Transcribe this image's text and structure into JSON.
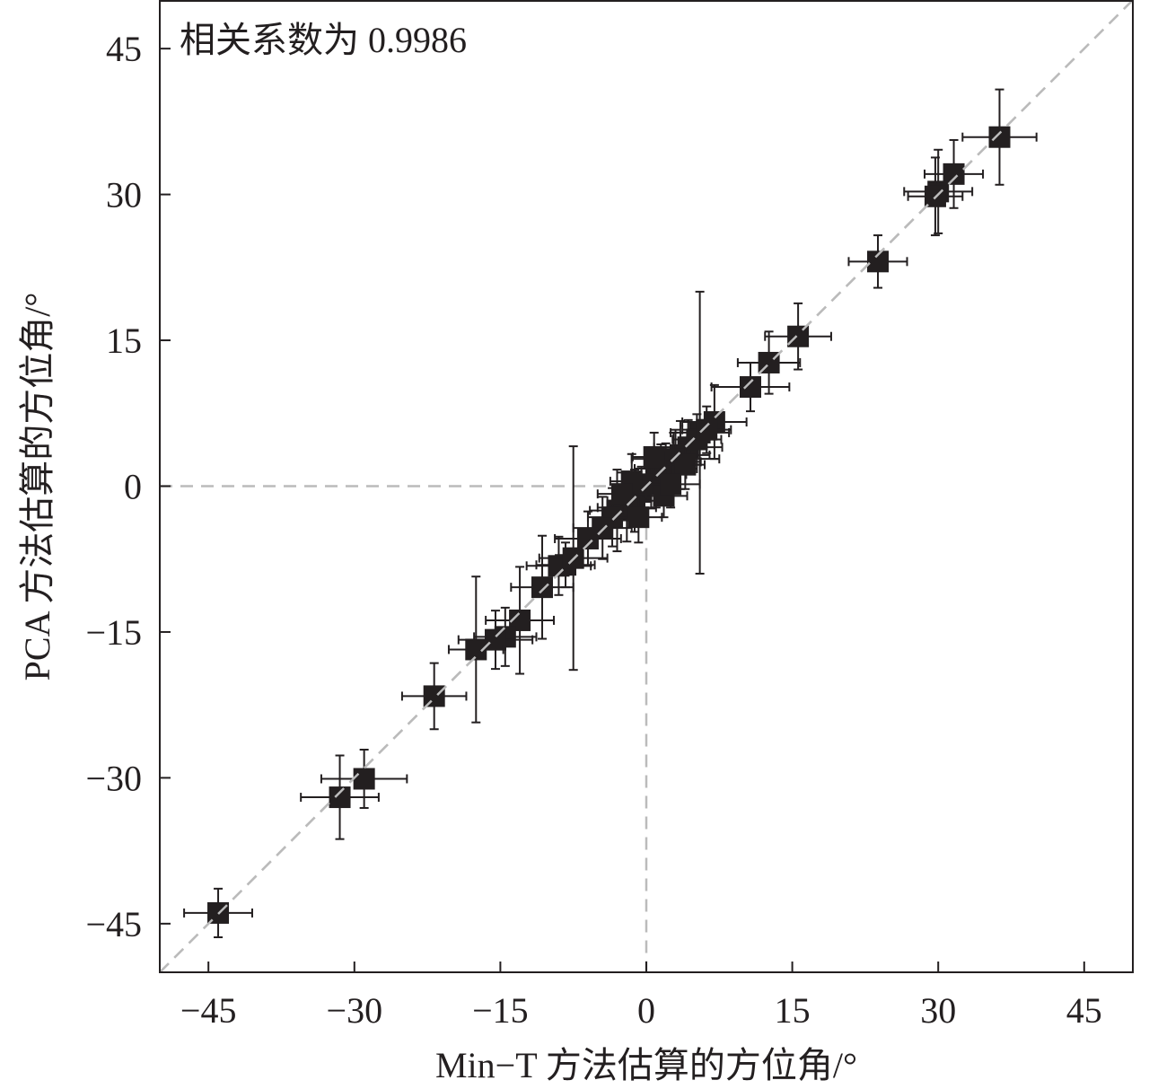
{
  "chart_data": {
    "type": "scatter",
    "annotation": "相关系数为 0.9986",
    "xlabel": "Min−T 方法估算的方位角/°",
    "ylabel": "PCA 方法估算的方位角/°",
    "xlim": [
      -50,
      50
    ],
    "ylim": [
      -50,
      50
    ],
    "x_ticks": [
      -45,
      -30,
      -15,
      0,
      15,
      30,
      45
    ],
    "y_ticks": [
      -45,
      -30,
      -15,
      0,
      15,
      30,
      45
    ],
    "x_tick_labels": [
      "−45",
      "−30",
      "−15",
      "0",
      "15",
      "30",
      "45"
    ],
    "y_tick_labels": [
      "−45",
      "−30",
      "−15",
      "0",
      "15",
      "30",
      "45"
    ],
    "grid": false,
    "reference_lines": [
      "y = x (dashed gray)",
      "x = 0 (dashed gray, to y = 0)",
      "y = 0 (dashed gray, to x = 0)"
    ],
    "marker": "square",
    "colors": {
      "marker": "#231f20",
      "reference": "#bbbbbb",
      "axis": "#231f20"
    },
    "points": [
      {
        "x": 36.3,
        "y": 35.9,
        "xerr": 3.8,
        "yerr": 4.9
      },
      {
        "x": 31.6,
        "y": 32.1,
        "xerr": 3.0,
        "yerr": 3.5
      },
      {
        "x": 30.0,
        "y": 30.3,
        "xerr": 3.5,
        "yerr": 4.3
      },
      {
        "x": 29.7,
        "y": 29.8,
        "xerr": 2.8,
        "yerr": 4.0
      },
      {
        "x": 23.8,
        "y": 23.1,
        "xerr": 3.0,
        "yerr": 2.7
      },
      {
        "x": 15.6,
        "y": 15.4,
        "xerr": 3.4,
        "yerr": 3.4
      },
      {
        "x": 12.6,
        "y": 12.7,
        "xerr": 3.2,
        "yerr": 3.2
      },
      {
        "x": 10.7,
        "y": 10.2,
        "xerr": 4.0,
        "yerr": 2.5
      },
      {
        "x": 7.0,
        "y": 6.6,
        "xerr": 3.3,
        "yerr": 3.8
      },
      {
        "x": 5.5,
        "y": 5.5,
        "xerr": 3.0,
        "yerr": 14.5
      },
      {
        "x": 4.3,
        "y": 4.0,
        "xerr": 3.5,
        "yerr": 2.8
      },
      {
        "x": 3.5,
        "y": 3.2,
        "xerr": 3.0,
        "yerr": 3.5
      },
      {
        "x": 2.8,
        "y": 2.5,
        "xerr": 2.8,
        "yerr": 3.0
      },
      {
        "x": 2.0,
        "y": 1.8,
        "xerr": 3.2,
        "yerr": 2.6
      },
      {
        "x": 1.5,
        "y": 1.2,
        "xerr": 2.6,
        "yerr": 3.1
      },
      {
        "x": 1.0,
        "y": 0.6,
        "xerr": 2.4,
        "yerr": 2.8
      },
      {
        "x": 0.5,
        "y": 0.2,
        "xerr": 2.5,
        "yerr": 2.5
      },
      {
        "x": -0.5,
        "y": -0.6,
        "xerr": 2.7,
        "yerr": 2.6
      },
      {
        "x": -1.2,
        "y": -1.5,
        "xerr": 2.8,
        "yerr": 3.2
      },
      {
        "x": -2.0,
        "y": -2.2,
        "xerr": 3.0,
        "yerr": 3.5
      },
      {
        "x": -3.0,
        "y": -2.5,
        "xerr": 2.8,
        "yerr": 4.2
      },
      {
        "x": -3.5,
        "y": -3.2,
        "xerr": 2.5,
        "yerr": 3.0
      },
      {
        "x": -4.5,
        "y": -4.3,
        "xerr": 3.0,
        "yerr": 3.2
      },
      {
        "x": -6.0,
        "y": -5.4,
        "xerr": 3.4,
        "yerr": 2.8
      },
      {
        "x": 3.0,
        "y": 2.8,
        "xerr": 4.5,
        "yerr": 3.0
      },
      {
        "x": 1.8,
        "y": -1.0,
        "xerr": 2.4,
        "yerr": 2.2
      },
      {
        "x": 4.0,
        "y": 2.2,
        "xerr": 2.0,
        "yerr": 2.5
      },
      {
        "x": -1.5,
        "y": 0.5,
        "xerr": 2.2,
        "yerr": 2.8
      },
      {
        "x": 0.8,
        "y": 3.0,
        "xerr": 2.2,
        "yerr": 2.5
      },
      {
        "x": 2.5,
        "y": 0.2,
        "xerr": 3.0,
        "yerr": 2.4
      },
      {
        "x": -0.8,
        "y": -3.2,
        "xerr": 2.4,
        "yerr": 2.6
      },
      {
        "x": -2.5,
        "y": -0.8,
        "xerr": 2.5,
        "yerr": 2.2
      },
      {
        "x": 5.2,
        "y": 4.8,
        "xerr": 2.5,
        "yerr": 2.6
      },
      {
        "x": 6.2,
        "y": 5.8,
        "xerr": 2.5,
        "yerr": 2.4
      },
      {
        "x": -8.3,
        "y": -8.1,
        "xerr": 3.0,
        "yerr": 2.3
      },
      {
        "x": -9.0,
        "y": -8.2,
        "xerr": 3.3,
        "yerr": 3.0
      },
      {
        "x": -7.5,
        "y": -7.4,
        "xerr": 3.5,
        "yerr": 11.5
      },
      {
        "x": -10.7,
        "y": -10.4,
        "xerr": 3.2,
        "yerr": 5.3
      },
      {
        "x": -13.0,
        "y": -13.8,
        "xerr": 3.5,
        "yerr": 5.5
      },
      {
        "x": -14.5,
        "y": -15.5,
        "xerr": 3.2,
        "yerr": 3.0
      },
      {
        "x": -15.5,
        "y": -15.8,
        "xerr": 3.8,
        "yerr": 3.0
      },
      {
        "x": -17.5,
        "y": -16.8,
        "xerr": 2.8,
        "yerr": 7.5
      },
      {
        "x": -21.8,
        "y": -21.6,
        "xerr": 3.3,
        "yerr": 3.4
      },
      {
        "x": -29.0,
        "y": -30.1,
        "xerr": 4.4,
        "yerr": 3.0
      },
      {
        "x": -31.5,
        "y": -32.0,
        "xerr": 4.0,
        "yerr": 4.3
      },
      {
        "x": -44.0,
        "y": -43.9,
        "xerr": 3.5,
        "yerr": 2.5
      }
    ]
  }
}
